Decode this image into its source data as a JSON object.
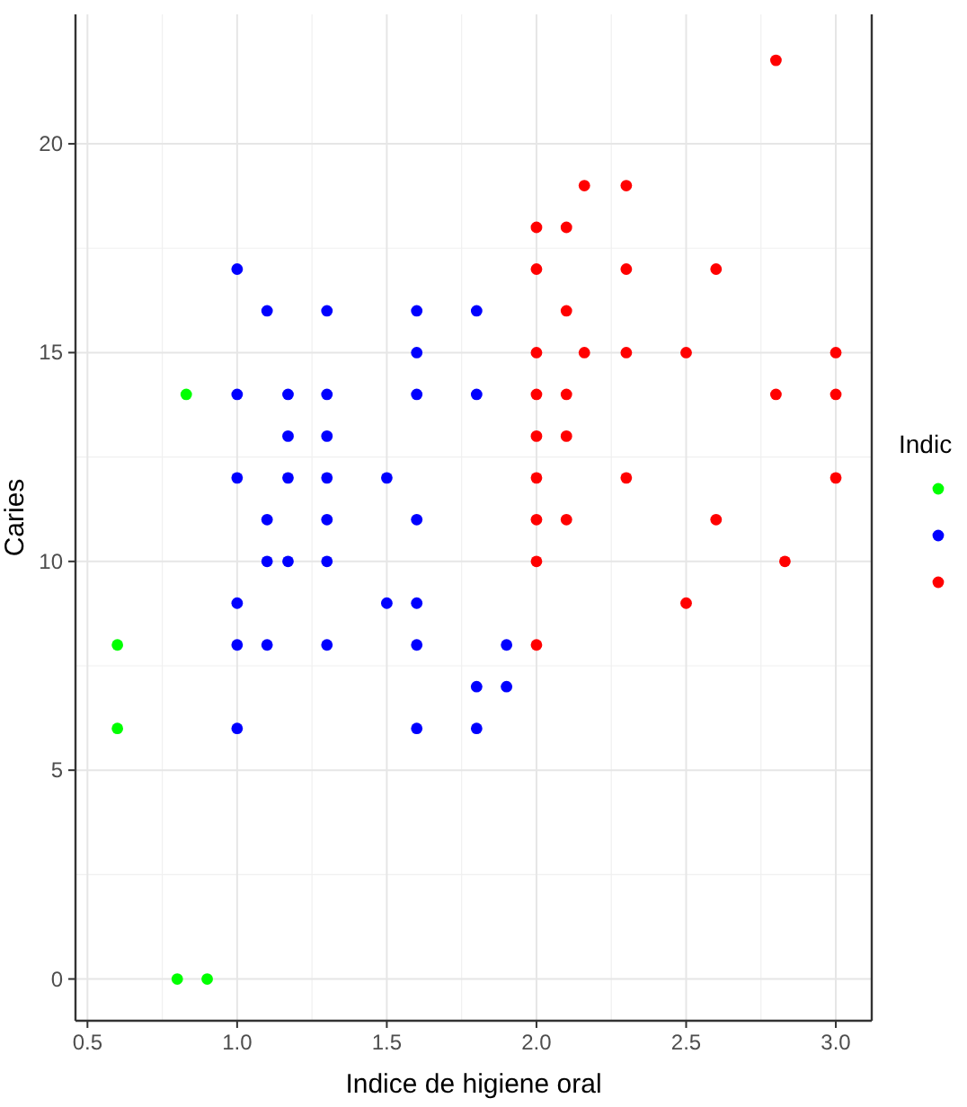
{
  "chart_data": {
    "type": "scatter",
    "xlabel": "Indice de higiene oral",
    "ylabel": "Caries",
    "legend_title": "Indic",
    "xlim": [
      0.46,
      3.12
    ],
    "xticks": [
      {
        "value": 0.5,
        "label": "0.5"
      },
      {
        "value": 1,
        "label": "1.0"
      },
      {
        "value": 1.5,
        "label": "1.5"
      },
      {
        "value": 2,
        "label": "2.0"
      },
      {
        "value": 2.5,
        "label": "2.5"
      },
      {
        "value": 3,
        "label": "3.0"
      }
    ],
    "ylim": [
      -1,
      23.1
    ],
    "yticks": [
      0,
      5,
      10,
      15,
      20
    ],
    "grid": true,
    "marker": "circle",
    "series": [
      {
        "color": "#00ff00",
        "x": [
          0.6,
          0.6,
          0.8,
          0.9,
          0.83
        ],
        "values": [
          8,
          6,
          0,
          0,
          14
        ]
      },
      {
        "color": "#0000ff",
        "x": [
          1.0,
          1.1,
          1.3,
          1.6,
          1.8,
          1.6,
          1.0,
          1.17,
          1.3,
          1.6,
          1.8,
          1.17,
          1.3,
          1.0,
          1.17,
          1.3,
          1.5,
          1.1,
          1.3,
          1.6,
          1.1,
          1.17,
          1.3,
          1.0,
          1.5,
          1.6,
          1.0,
          1.1,
          1.3,
          1.6,
          1.9,
          1.8,
          1.9,
          1.0,
          1.6,
          1.8
        ],
        "values": [
          17,
          16,
          16,
          16,
          16,
          15,
          14,
          14,
          14,
          14,
          14,
          13,
          13,
          12,
          12,
          12,
          12,
          11,
          11,
          11,
          10,
          10,
          10,
          9,
          9,
          9,
          8,
          8,
          8,
          8,
          8,
          7,
          7,
          6,
          6,
          6
        ]
      },
      {
        "color": "#ff0000",
        "x": [
          2.8,
          2.16,
          2.3,
          2.0,
          2.1,
          2.0,
          2.3,
          2.6,
          2.1,
          2.0,
          2.16,
          2.3,
          2.5,
          3.0,
          2.0,
          2.1,
          2.8,
          3.0,
          2.0,
          2.1,
          2.0,
          2.3,
          3.0,
          2.0,
          2.1,
          2.6,
          2.0,
          2.83,
          2.5,
          2.0
        ],
        "values": [
          22,
          19,
          19,
          18,
          18,
          17,
          17,
          17,
          16,
          15,
          15,
          15,
          15,
          15,
          14,
          14,
          14,
          14,
          13,
          13,
          12,
          12,
          12,
          11,
          11,
          11,
          10,
          10,
          9,
          8
        ]
      }
    ]
  }
}
